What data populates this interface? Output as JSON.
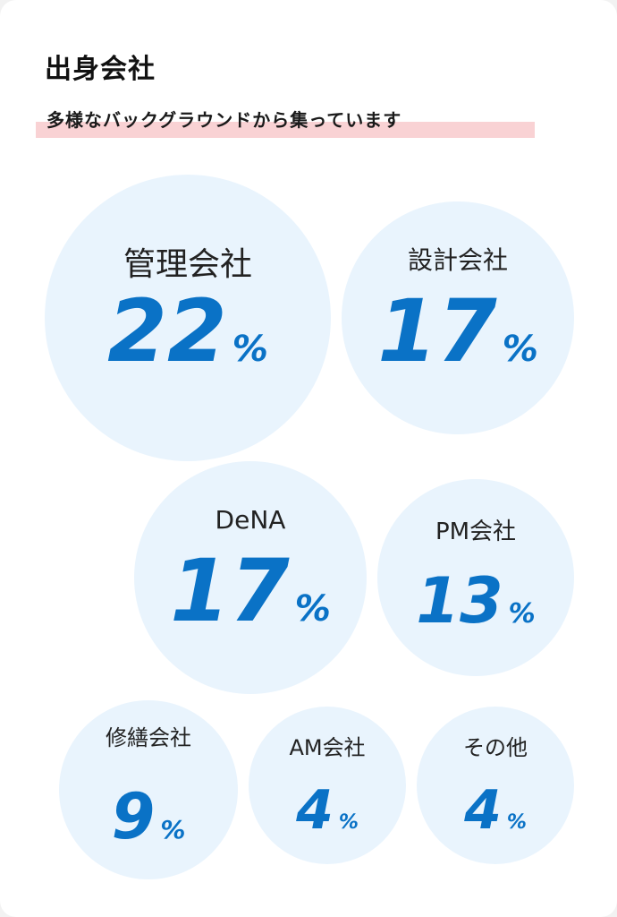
{
  "header": {
    "title": "出身会社",
    "subtitle": "多様なバックグラウンドから集っています"
  },
  "colors": {
    "bubble_fill": "#e9f4fd",
    "value_color": "#0a72c6",
    "highlight": "#f9d2d4"
  },
  "chart_data": {
    "type": "bubble",
    "unit": "%",
    "categories": [
      "管理会社",
      "設計会社",
      "DeNA",
      "PM会社",
      "修繕会社",
      "AM会社",
      "その他"
    ],
    "values": [
      22,
      17,
      17,
      13,
      9,
      4,
      4
    ]
  }
}
